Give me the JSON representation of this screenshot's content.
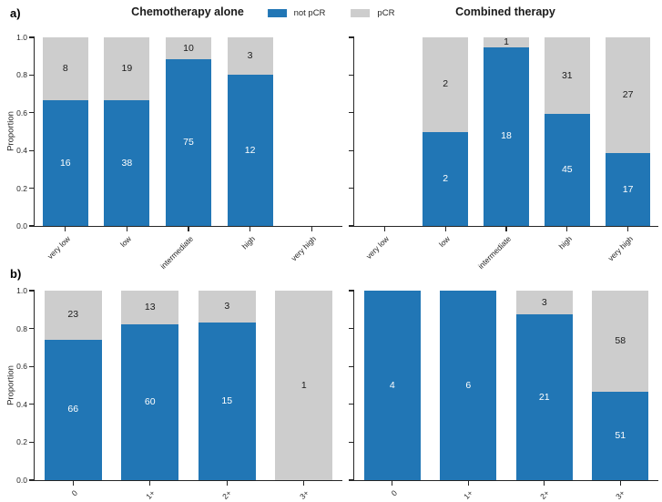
{
  "figure": {
    "background": "#ffffff",
    "panel_a_label": "a)",
    "panel_b_label": "b)",
    "y_axis_label": "Proportion",
    "y_ticks": [
      "0.0",
      "0.2",
      "0.4",
      "0.6",
      "0.8",
      "1.0"
    ],
    "legend": [
      {
        "label": "not pCR",
        "color": "#2176b5"
      },
      {
        "label": "pCR",
        "color": "#cdcdcd"
      }
    ]
  },
  "chart_data": [
    {
      "id": "panel-a-left",
      "type": "bar",
      "stacked": true,
      "normalized": true,
      "title": "Chemotherapy alone",
      "ylabel": "Proportion",
      "ylim": [
        0,
        1
      ],
      "grid": false,
      "legend_position": "top-center",
      "categories": [
        "very low",
        "low",
        "intermediate",
        "high",
        "very high"
      ],
      "series": [
        {
          "name": "not pCR",
          "color": "#2176b5",
          "values": [
            16,
            38,
            75,
            12,
            null
          ]
        },
        {
          "name": "pCR",
          "color": "#cdcdcd",
          "values": [
            8,
            19,
            10,
            3,
            null
          ]
        }
      ]
    },
    {
      "id": "panel-a-right",
      "type": "bar",
      "stacked": true,
      "normalized": true,
      "title": "Combined therapy",
      "ylabel": "",
      "ylim": [
        0,
        1
      ],
      "grid": false,
      "categories": [
        "very low",
        "low",
        "intermediate",
        "high",
        "very high"
      ],
      "series": [
        {
          "name": "not pCR",
          "color": "#2176b5",
          "values": [
            null,
            2,
            18,
            45,
            17
          ]
        },
        {
          "name": "pCR",
          "color": "#cdcdcd",
          "values": [
            null,
            2,
            1,
            31,
            27
          ]
        }
      ]
    },
    {
      "id": "panel-b-left",
      "type": "bar",
      "stacked": true,
      "normalized": true,
      "title": "",
      "ylabel": "Proportion",
      "ylim": [
        0,
        1
      ],
      "grid": false,
      "categories": [
        "0",
        "1+",
        "2+",
        "3+"
      ],
      "series": [
        {
          "name": "not pCR",
          "color": "#2176b5",
          "values": [
            66,
            60,
            15,
            0
          ]
        },
        {
          "name": "pCR",
          "color": "#cdcdcd",
          "values": [
            23,
            13,
            3,
            1
          ]
        }
      ]
    },
    {
      "id": "panel-b-right",
      "type": "bar",
      "stacked": true,
      "normalized": true,
      "title": "",
      "ylabel": "",
      "ylim": [
        0,
        1
      ],
      "grid": false,
      "categories": [
        "0",
        "1+",
        "2+",
        "3+"
      ],
      "series": [
        {
          "name": "not pCR",
          "color": "#2176b5",
          "values": [
            4,
            6,
            21,
            51
          ]
        },
        {
          "name": "pCR",
          "color": "#cdcdcd",
          "values": [
            0,
            0,
            3,
            58
          ]
        }
      ]
    }
  ]
}
